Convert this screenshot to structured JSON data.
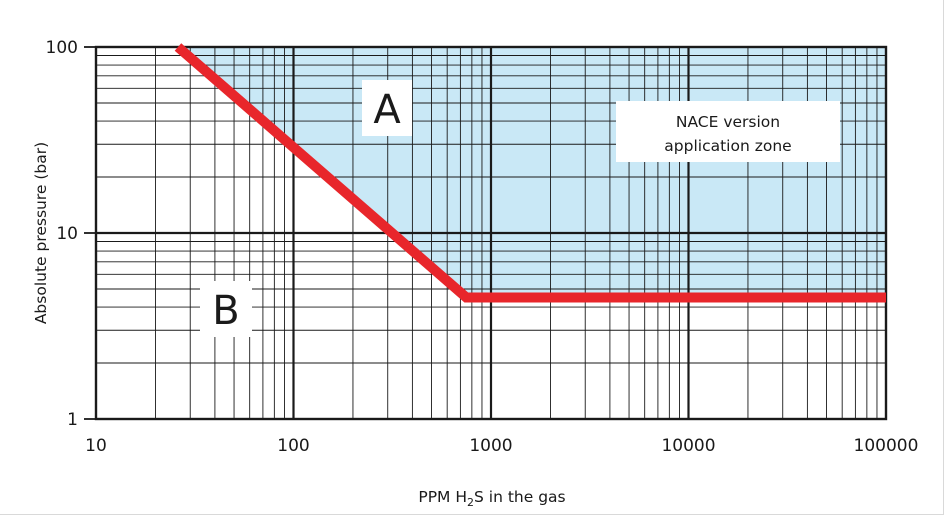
{
  "chart_data": {
    "type": "line",
    "title": "",
    "xlabel": {
      "prefix": "PPM H",
      "subscript": "2",
      "suffix": "S in the gas"
    },
    "ylabel": "Absolute pressure (bar)",
    "x_scale": "log",
    "y_scale": "log",
    "xlim": [
      10,
      100000
    ],
    "ylim": [
      1,
      100
    ],
    "x_ticks": [
      "10",
      "100",
      "1000",
      "10000",
      "100000"
    ],
    "x_tick_values": [
      10,
      100,
      1000,
      10000,
      100000
    ],
    "y_ticks": [
      "100",
      "10",
      "1"
    ],
    "y_tick_values": [
      100,
      10,
      1
    ],
    "grid": true,
    "series": [
      {
        "color": "#e8262b",
        "x": [
          26,
          750,
          100000
        ],
        "y": [
          100,
          4.5,
          4.5
        ]
      }
    ],
    "shaded_region_color": "#c9e8f6",
    "annotations": {
      "region_a": "A",
      "region_b": "B",
      "zone_line1": "NACE version",
      "zone_line2": "application zone"
    }
  }
}
